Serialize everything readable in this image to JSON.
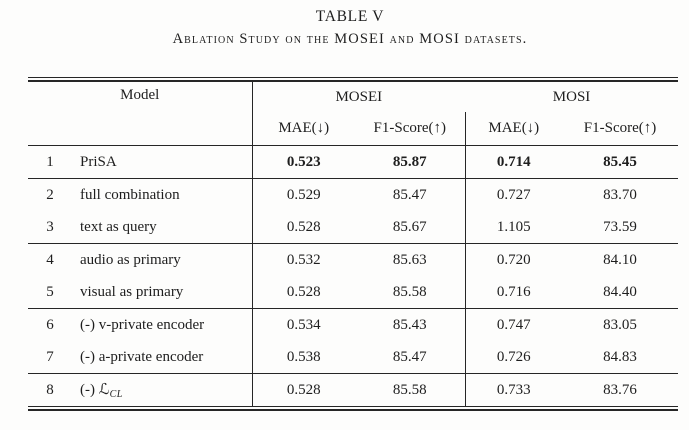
{
  "title": {
    "label": "TABLE V",
    "caption": "Ablation Study on the MOSEI and MOSI datasets."
  },
  "table": {
    "headers": {
      "model": "Model",
      "group1": "MOSEI",
      "group2": "MOSI",
      "mae": "MAE(↓)",
      "f1": "F1-Score(↑)"
    },
    "rows": [
      {
        "num": "1",
        "model": "PriSA",
        "mosei_mae": "0.523",
        "mosei_f1": "85.87",
        "mosi_mae": "0.714",
        "mosi_f1": "85.45"
      },
      {
        "num": "2",
        "model": "full combination",
        "mosei_mae": "0.529",
        "mosei_f1": "85.47",
        "mosi_mae": "0.727",
        "mosi_f1": "83.70"
      },
      {
        "num": "3",
        "model": "text as query",
        "mosei_mae": "0.528",
        "mosei_f1": "85.67",
        "mosi_mae": "1.105",
        "mosi_f1": "73.59"
      },
      {
        "num": "4",
        "model": "audio as primary",
        "mosei_mae": "0.532",
        "mosei_f1": "85.63",
        "mosi_mae": "0.720",
        "mosi_f1": "84.10"
      },
      {
        "num": "5",
        "model": "visual as primary",
        "mosei_mae": "0.528",
        "mosei_f1": "85.58",
        "mosi_mae": "0.716",
        "mosi_f1": "84.40"
      },
      {
        "num": "6",
        "model": "(-) v-private encoder",
        "mosei_mae": "0.534",
        "mosei_f1": "85.43",
        "mosi_mae": "0.747",
        "mosi_f1": "83.05"
      },
      {
        "num": "7",
        "model": "(-) a-private encoder",
        "mosei_mae": "0.538",
        "mosei_f1": "85.47",
        "mosi_mae": "0.726",
        "mosi_f1": "84.83"
      },
      {
        "num": "8",
        "model_prefix": "(-) ",
        "model_symbol": "ℒ",
        "model_sub": "CL",
        "mosei_mae": "0.528",
        "mosei_f1": "85.58",
        "mosi_mae": "0.733",
        "mosi_f1": "83.76"
      }
    ]
  },
  "colors": {
    "text": "#1e1e1e",
    "rule": "#262626",
    "background": "#fdfdfc"
  }
}
